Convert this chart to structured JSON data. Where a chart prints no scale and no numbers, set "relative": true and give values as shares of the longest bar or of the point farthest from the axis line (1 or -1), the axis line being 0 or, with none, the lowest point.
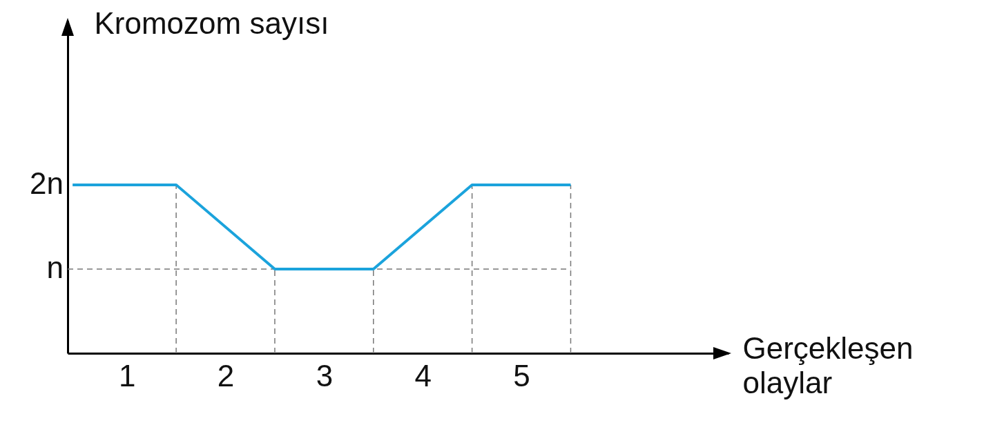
{
  "chart_data": {
    "type": "line",
    "xlabel": "Gerçekleşen olaylar",
    "ylabel": "Kromozom sayısı",
    "relative": true,
    "xlim": [
      0.4,
      7.1
    ],
    "xticks": [
      1,
      2,
      3,
      4,
      5
    ],
    "x": [
      0.45,
      1.5,
      2.5,
      3.5,
      4.5,
      5.5
    ],
    "series": [
      {
        "color": "#1ba3dc",
        "values": [
          1,
          1,
          0.5,
          0.5,
          1,
          1
        ]
      }
    ],
    "line_style": "solid",
    "annotations": [
      "2n"
    ],
    "ref_lines": [
      {
        "axis": "y",
        "value": 0.5,
        "label": "n",
        "color": "#777777",
        "line_style": "dashed"
      },
      {
        "axis": "x",
        "value": 1.5,
        "label": null,
        "color": "#777777",
        "line_style": "dashed"
      },
      {
        "axis": "x",
        "value": 2.5,
        "label": null,
        "color": "#777777",
        "line_style": "dashed"
      },
      {
        "axis": "x",
        "value": 3.5,
        "label": null,
        "color": "#777777",
        "line_style": "dashed"
      },
      {
        "axis": "x",
        "value": 4.5,
        "label": null,
        "color": "#777777",
        "line_style": "dashed"
      },
      {
        "axis": "x",
        "value": 5.5,
        "label": null,
        "color": "#777777",
        "line_style": "dashed"
      }
    ]
  }
}
